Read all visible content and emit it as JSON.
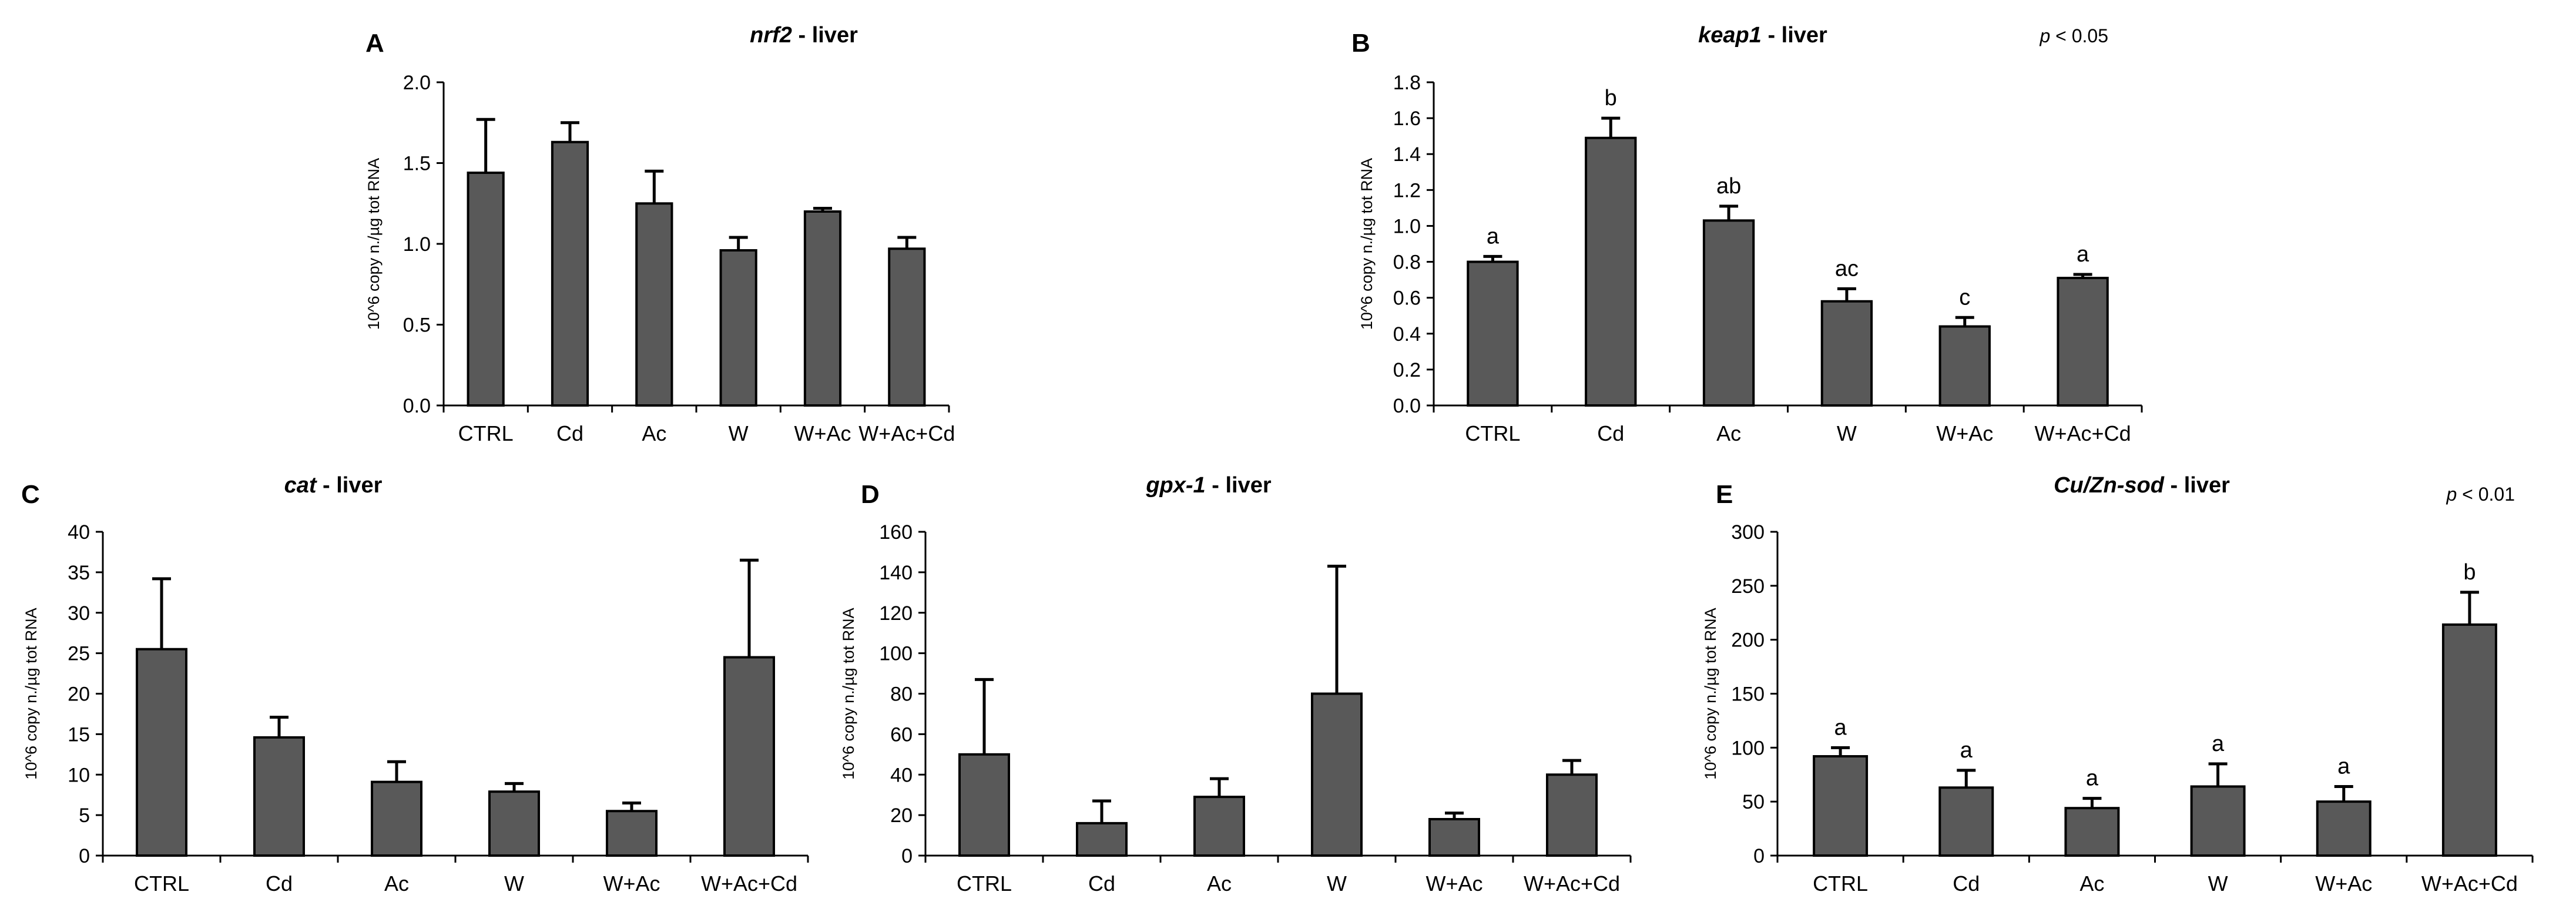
{
  "chart_data": [
    {
      "panel": "A",
      "type": "bar",
      "title_italic": "nrf2",
      "title_rest": " - liver",
      "ylabel": "10^6 copy n./µg tot RNA",
      "ylim": [
        0,
        2.0
      ],
      "yticks": [
        "0.0",
        "0.5",
        "1.0",
        "1.5",
        "2.0"
      ],
      "pvalue_p": "",
      "pvalue_rest": "",
      "categories": [
        "CTRL",
        "Cd",
        "Ac",
        "W",
        "W+Ac",
        "W+Ac+Cd"
      ],
      "values": [
        1.44,
        1.63,
        1.25,
        0.96,
        1.2,
        0.97
      ],
      "errors": [
        0.33,
        0.12,
        0.2,
        0.08,
        0.02,
        0.07
      ],
      "labels": [
        "",
        "",
        "",
        "",
        "",
        ""
      ],
      "grid": false
    },
    {
      "panel": "B",
      "type": "bar",
      "title_italic": "keap1",
      "title_rest": " - liver",
      "ylabel": "10^6 copy n./µg tot RNA",
      "ylim": [
        0,
        1.8
      ],
      "yticks": [
        "0.0",
        "0.2",
        "0.4",
        "0.6",
        "0.8",
        "1.0",
        "1.2",
        "1.4",
        "1.6",
        "1.8"
      ],
      "pvalue_p": "p",
      "pvalue_rest": " < 0.05",
      "categories": [
        "CTRL",
        "Cd",
        "Ac",
        "W",
        "W+Ac",
        "W+Ac+Cd"
      ],
      "values": [
        0.8,
        1.49,
        1.03,
        0.58,
        0.44,
        0.71
      ],
      "errors": [
        0.03,
        0.11,
        0.08,
        0.07,
        0.05,
        0.02
      ],
      "labels": [
        "a",
        "b",
        "ab",
        "ac",
        "c",
        "a"
      ],
      "grid": false
    },
    {
      "panel": "C",
      "type": "bar",
      "title_italic": "cat",
      "title_rest": " - liver",
      "ylabel": "10^6 copy n./µg tot RNA",
      "ylim": [
        0,
        40
      ],
      "yticks": [
        "0",
        "5",
        "10",
        "15",
        "20",
        "25",
        "30",
        "35",
        "40"
      ],
      "pvalue_p": "",
      "pvalue_rest": "",
      "categories": [
        "CTRL",
        "Cd",
        "Ac",
        "W",
        "W+Ac",
        "W+Ac+Cd"
      ],
      "values": [
        25.5,
        14.6,
        9.1,
        7.9,
        5.5,
        24.5
      ],
      "errors": [
        8.7,
        2.5,
        2.5,
        1.0,
        1.0,
        12.0
      ],
      "labels": [
        "",
        "",
        "",
        "",
        "",
        ""
      ],
      "grid": false
    },
    {
      "panel": "D",
      "type": "bar",
      "title_italic": "gpx-1",
      "title_rest": " - liver",
      "ylabel": "10^6 copy n./µg tot RNA",
      "ylim": [
        0,
        160
      ],
      "yticks": [
        "0",
        "20",
        "40",
        "60",
        "80",
        "100",
        "120",
        "140",
        "160"
      ],
      "pvalue_p": "",
      "pvalue_rest": "",
      "categories": [
        "CTRL",
        "Cd",
        "Ac",
        "W",
        "W+Ac",
        "W+Ac+Cd"
      ],
      "values": [
        50,
        16,
        29,
        80,
        18,
        40
      ],
      "errors": [
        37,
        11,
        9,
        63,
        3,
        7
      ],
      "labels": [
        "",
        "",
        "",
        "",
        "",
        ""
      ],
      "grid": false
    },
    {
      "panel": "E",
      "type": "bar",
      "title_italic": "Cu/Zn-sod",
      "title_rest": " - liver",
      "ylabel": "10^6 copy n./µg tot RNA",
      "ylim": [
        0,
        300
      ],
      "yticks": [
        "0",
        "50",
        "100",
        "150",
        "200",
        "250",
        "300"
      ],
      "pvalue_p": "p",
      "pvalue_rest": " < 0.01",
      "categories": [
        "CTRL",
        "Cd",
        "Ac",
        "W",
        "W+Ac",
        "W+Ac+Cd"
      ],
      "values": [
        92,
        63,
        44,
        64,
        50,
        214
      ],
      "errors": [
        8,
        16,
        9,
        21,
        14,
        30
      ],
      "labels": [
        "a",
        "a",
        "a",
        "a",
        "a",
        "b"
      ],
      "grid": false
    }
  ]
}
